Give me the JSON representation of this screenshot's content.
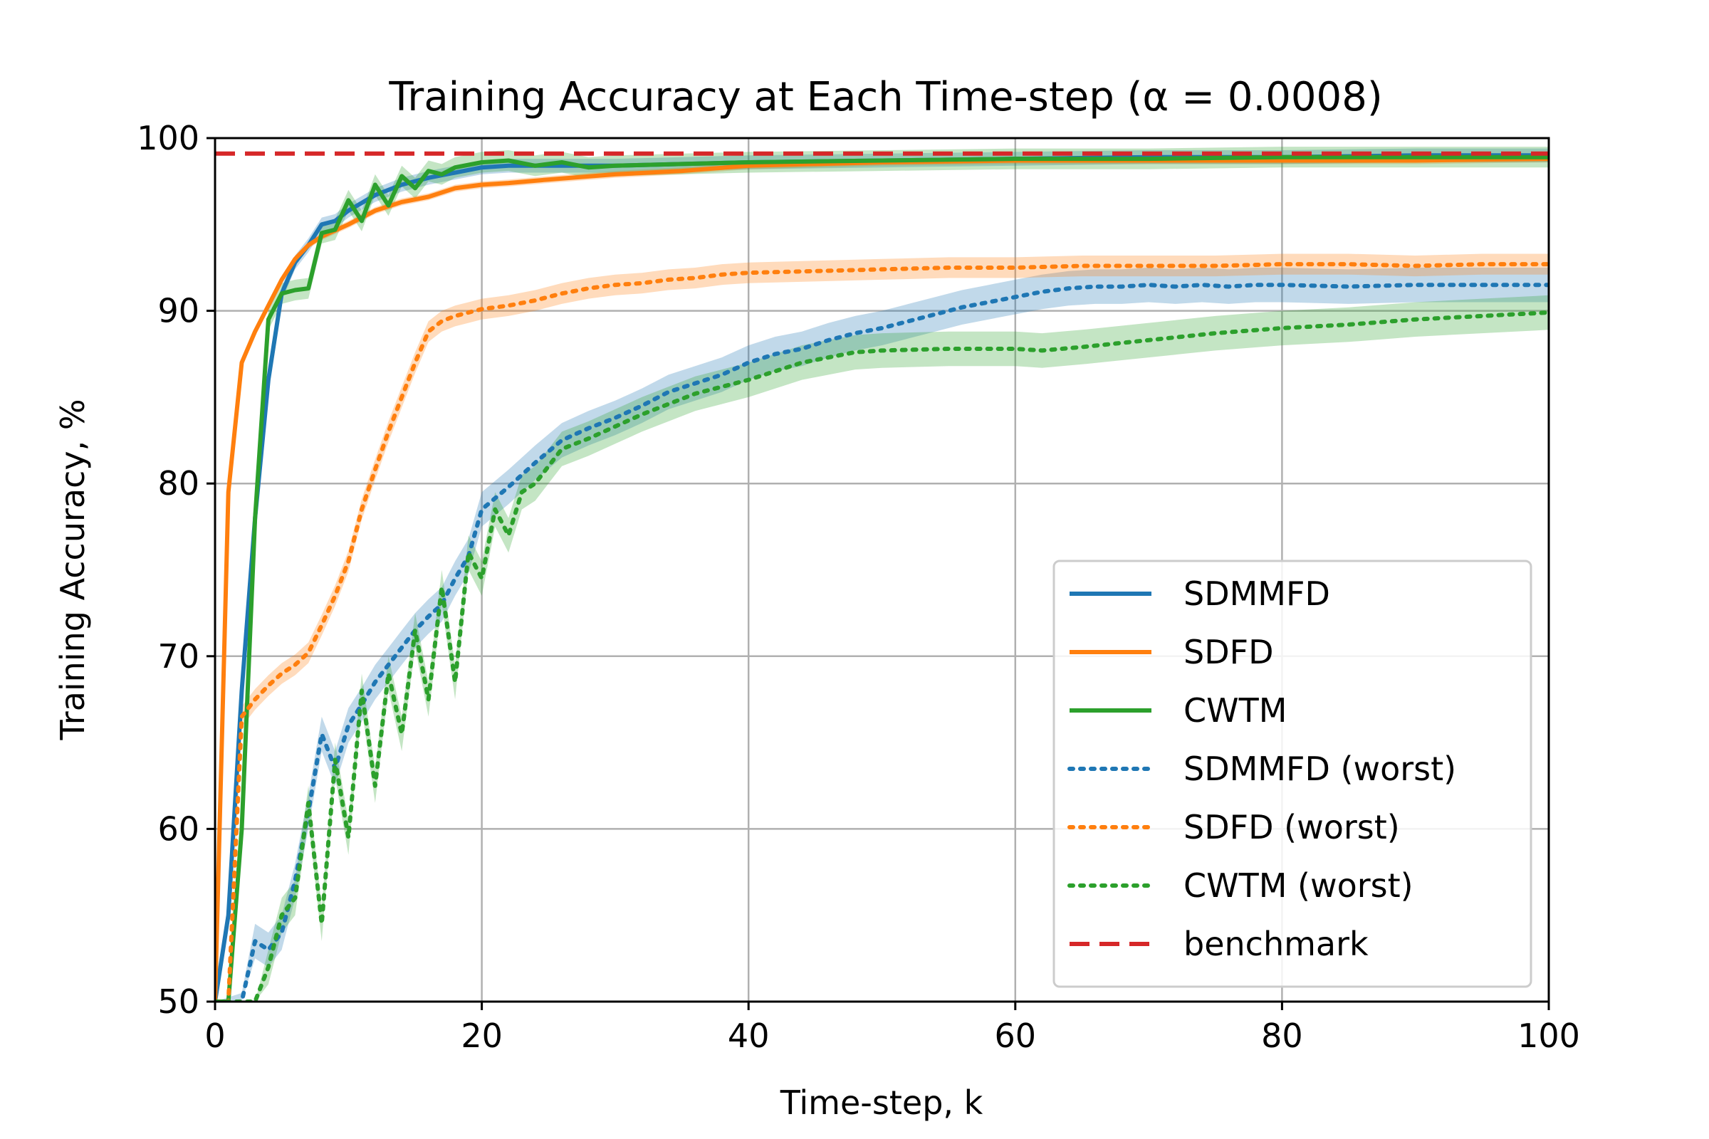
{
  "chart_data": {
    "type": "line",
    "title": "Training Accuracy at Each Time-step (α = 0.0008)",
    "xlabel": "Time-step, k",
    "ylabel": "Training Accuracy, %",
    "xlim": [
      0,
      100
    ],
    "ylim": [
      50,
      100
    ],
    "xticks": [
      0,
      20,
      40,
      60,
      80,
      100
    ],
    "yticks": [
      50,
      60,
      70,
      80,
      90,
      100
    ],
    "grid": true,
    "legend_position": "lower-right",
    "series": [
      {
        "name": "SDMMFD",
        "color": "#1f77b4",
        "style": "solid",
        "band": 0.4,
        "x": [
          0,
          1,
          2,
          3,
          4,
          5,
          6,
          7,
          8,
          9,
          10,
          12,
          14,
          16,
          18,
          20,
          22,
          25,
          30,
          35,
          40,
          50,
          60,
          70,
          80,
          90,
          100
        ],
        "y": [
          42,
          55,
          68,
          78,
          86,
          91,
          92.8,
          93.8,
          95,
          95.2,
          95.8,
          96.7,
          97.3,
          97.7,
          98.0,
          98.3,
          98.4,
          98.4,
          98.4,
          98.5,
          98.6,
          98.7,
          98.8,
          98.9,
          98.9,
          99.0,
          99.0
        ]
      },
      {
        "name": "SDFD",
        "color": "#ff7f0e",
        "style": "solid",
        "band": 0.2,
        "x": [
          0,
          1,
          2,
          3,
          4,
          5,
          6,
          7,
          8,
          10,
          12,
          14,
          16,
          18,
          20,
          22,
          25,
          30,
          35,
          40,
          50,
          60,
          70,
          80,
          90,
          100
        ],
        "y": [
          45,
          79.5,
          87,
          88.8,
          90.3,
          91.8,
          93,
          93.8,
          94.3,
          95,
          95.8,
          96.3,
          96.6,
          97.1,
          97.3,
          97.4,
          97.6,
          97.9,
          98.1,
          98.4,
          98.6,
          98.7,
          98.7,
          98.7,
          98.7,
          98.8
        ]
      },
      {
        "name": "CWTM",
        "color": "#2ca02c",
        "style": "solid",
        "band": 0.6,
        "x": [
          0,
          1,
          2,
          3,
          4,
          5,
          6,
          7,
          8,
          9,
          10,
          11,
          12,
          13,
          14,
          15,
          16,
          17,
          18,
          20,
          22,
          24,
          26,
          28,
          30,
          35,
          40,
          50,
          60,
          70,
          80,
          90,
          100
        ],
        "y": [
          40,
          48,
          60,
          78,
          89.5,
          91,
          91.2,
          91.3,
          94.5,
          94.7,
          96.4,
          95.2,
          97.3,
          96.1,
          97.8,
          97.1,
          98.1,
          97.9,
          98.3,
          98.6,
          98.7,
          98.4,
          98.6,
          98.3,
          98.4,
          98.5,
          98.6,
          98.7,
          98.8,
          98.8,
          98.9,
          98.9,
          98.9
        ]
      },
      {
        "name": "SDMMFD (worst)",
        "color": "#1f77b4",
        "style": "dotted",
        "band": 1.0,
        "x": [
          0,
          2,
          3,
          4,
          5,
          6,
          7,
          8,
          9,
          10,
          11,
          12,
          13,
          14,
          15,
          16,
          17,
          18,
          19,
          20,
          22,
          24,
          26,
          28,
          30,
          32,
          34,
          36,
          38,
          40,
          42,
          44,
          46,
          48,
          50,
          52,
          54,
          56,
          58,
          60,
          62,
          64,
          66,
          68,
          70,
          72,
          74,
          76,
          78,
          80,
          85,
          90,
          95,
          100
        ],
        "y": [
          45,
          49.5,
          53.5,
          53,
          54,
          57,
          61,
          65.5,
          63.5,
          66,
          67.2,
          68.5,
          69.5,
          70.5,
          71.5,
          72.3,
          73,
          74.5,
          75.8,
          78.5,
          79.8,
          81.2,
          82.5,
          83.2,
          83.8,
          84.5,
          85.3,
          85.8,
          86.3,
          87,
          87.5,
          87.8,
          88.3,
          88.7,
          89,
          89.4,
          89.8,
          90.2,
          90.5,
          90.8,
          91.1,
          91.3,
          91.4,
          91.4,
          91.5,
          91.4,
          91.5,
          91.4,
          91.5,
          91.5,
          91.4,
          91.5,
          91.5,
          91.5
        ]
      },
      {
        "name": "SDFD (worst)",
        "color": "#ff7f0e",
        "style": "dotted",
        "band": 0.6,
        "x": [
          0,
          1,
          2,
          3,
          4,
          5,
          6,
          7,
          8,
          9,
          10,
          11,
          12,
          13,
          14,
          15,
          16,
          17,
          18,
          19,
          20,
          22,
          24,
          26,
          28,
          30,
          32,
          34,
          36,
          38,
          40,
          45,
          50,
          55,
          60,
          65,
          70,
          75,
          80,
          85,
          90,
          95,
          100
        ],
        "y": [
          42,
          47,
          66.5,
          67.5,
          68.3,
          69,
          69.5,
          70.2,
          71.8,
          73.5,
          75.5,
          78.5,
          80.8,
          83,
          85,
          87,
          88.8,
          89.4,
          89.7,
          89.9,
          90.1,
          90.3,
          90.6,
          91,
          91.3,
          91.5,
          91.6,
          91.8,
          91.9,
          92.1,
          92.2,
          92.3,
          92.4,
          92.5,
          92.5,
          92.6,
          92.6,
          92.6,
          92.7,
          92.7,
          92.6,
          92.7,
          92.7
        ]
      },
      {
        "name": "CWTM (worst)",
        "color": "#2ca02c",
        "style": "dotted",
        "band": 1.0,
        "x": [
          0,
          3,
          4,
          5,
          6,
          7,
          8,
          9,
          10,
          11,
          12,
          13,
          14,
          15,
          16,
          17,
          18,
          19,
          20,
          21,
          22,
          23,
          24,
          26,
          28,
          30,
          32,
          34,
          36,
          38,
          40,
          42,
          44,
          46,
          48,
          50,
          55,
          60,
          62,
          65,
          70,
          75,
          80,
          85,
          90,
          95,
          100
        ],
        "y": [
          45,
          49,
          52,
          55,
          56,
          61.5,
          54.5,
          64,
          59.5,
          68,
          62.5,
          69,
          65.5,
          71.5,
          67.5,
          74,
          68.5,
          76,
          74.5,
          78.5,
          77,
          79.5,
          80,
          82,
          82.6,
          83.3,
          84,
          84.6,
          85.2,
          85.6,
          86,
          86.5,
          87,
          87.3,
          87.6,
          87.7,
          87.8,
          87.8,
          87.7,
          87.9,
          88.3,
          88.7,
          89,
          89.2,
          89.5,
          89.7,
          89.9
        ]
      },
      {
        "name": "benchmark",
        "color": "#d62728",
        "style": "dashed",
        "band": 0,
        "x": [
          0,
          100
        ],
        "y": [
          99.1,
          99.1
        ]
      }
    ]
  }
}
